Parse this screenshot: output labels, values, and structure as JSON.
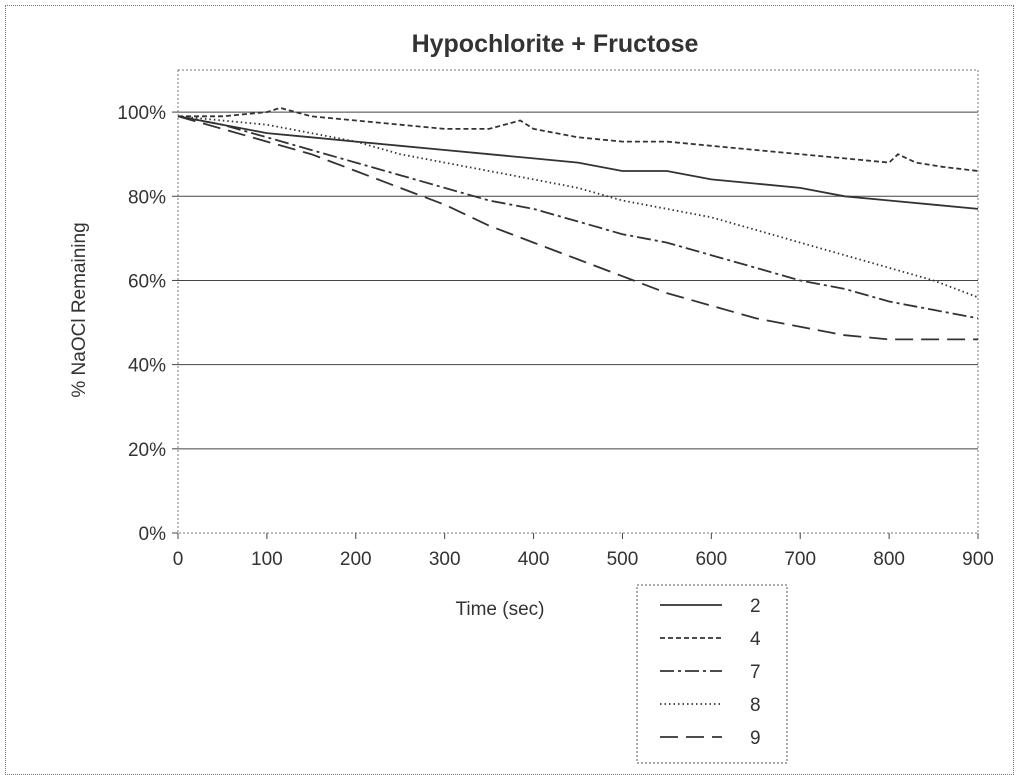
{
  "chart_data": {
    "type": "line",
    "title": "Hypochlorite + Fructose",
    "xlabel": "Time (sec)",
    "ylabel": "% NaOCl Remaining",
    "xlim": [
      0,
      900
    ],
    "ylim": [
      0,
      110
    ],
    "x_ticks": [
      "0",
      "100",
      "200",
      "300",
      "400",
      "500",
      "600",
      "700",
      "800",
      "900"
    ],
    "y_ticks": [
      "0%",
      "20%",
      "40%",
      "60%",
      "80%",
      "100%"
    ],
    "grid": "horizontal",
    "legend_position": "bottom-right",
    "series": [
      {
        "name": "2",
        "style": "solid",
        "points": [
          [
            0,
            99
          ],
          [
            50,
            97
          ],
          [
            100,
            95
          ],
          [
            150,
            94
          ],
          [
            200,
            93
          ],
          [
            250,
            92
          ],
          [
            300,
            91
          ],
          [
            350,
            90
          ],
          [
            400,
            89
          ],
          [
            450,
            88
          ],
          [
            500,
            86
          ],
          [
            550,
            86
          ],
          [
            600,
            84
          ],
          [
            650,
            83
          ],
          [
            700,
            82
          ],
          [
            750,
            80
          ],
          [
            800,
            79
          ],
          [
            850,
            78
          ],
          [
            900,
            77
          ]
        ]
      },
      {
        "name": "4",
        "style": "dashed-short",
        "points": [
          [
            0,
            99
          ],
          [
            50,
            99
          ],
          [
            100,
            100
          ],
          [
            115,
            101
          ],
          [
            150,
            99
          ],
          [
            200,
            98
          ],
          [
            250,
            97
          ],
          [
            300,
            96
          ],
          [
            350,
            96
          ],
          [
            385,
            98
          ],
          [
            400,
            96
          ],
          [
            450,
            94
          ],
          [
            500,
            93
          ],
          [
            550,
            93
          ],
          [
            600,
            92
          ],
          [
            650,
            91
          ],
          [
            700,
            90
          ],
          [
            750,
            89
          ],
          [
            800,
            88
          ],
          [
            810,
            90
          ],
          [
            830,
            88
          ],
          [
            860,
            87
          ],
          [
            900,
            86
          ]
        ]
      },
      {
        "name": "7",
        "style": "dash-dot",
        "points": [
          [
            0,
            99
          ],
          [
            50,
            97
          ],
          [
            100,
            94
          ],
          [
            150,
            91
          ],
          [
            200,
            88
          ],
          [
            250,
            85
          ],
          [
            300,
            82
          ],
          [
            350,
            79
          ],
          [
            400,
            77
          ],
          [
            450,
            74
          ],
          [
            500,
            71
          ],
          [
            550,
            69
          ],
          [
            600,
            66
          ],
          [
            650,
            63
          ],
          [
            700,
            60
          ],
          [
            750,
            58
          ],
          [
            800,
            55
          ],
          [
            850,
            53
          ],
          [
            900,
            51
          ]
        ]
      },
      {
        "name": "8",
        "style": "dotted",
        "points": [
          [
            0,
            99
          ],
          [
            50,
            98
          ],
          [
            100,
            97
          ],
          [
            150,
            95
          ],
          [
            200,
            93
          ],
          [
            250,
            90
          ],
          [
            300,
            88
          ],
          [
            350,
            86
          ],
          [
            400,
            84
          ],
          [
            450,
            82
          ],
          [
            500,
            79
          ],
          [
            550,
            77
          ],
          [
            600,
            75
          ],
          [
            650,
            72
          ],
          [
            700,
            69
          ],
          [
            750,
            66
          ],
          [
            800,
            63
          ],
          [
            850,
            60
          ],
          [
            900,
            56
          ]
        ]
      },
      {
        "name": "9",
        "style": "long-dash",
        "points": [
          [
            0,
            99
          ],
          [
            50,
            96
          ],
          [
            100,
            93
          ],
          [
            150,
            90
          ],
          [
            200,
            86
          ],
          [
            250,
            82
          ],
          [
            300,
            78
          ],
          [
            350,
            73
          ],
          [
            400,
            69
          ],
          [
            450,
            65
          ],
          [
            500,
            61
          ],
          [
            550,
            57
          ],
          [
            600,
            54
          ],
          [
            650,
            51
          ],
          [
            700,
            49
          ],
          [
            750,
            47
          ],
          [
            800,
            46
          ],
          [
            850,
            46
          ],
          [
            900,
            46
          ]
        ]
      }
    ]
  }
}
